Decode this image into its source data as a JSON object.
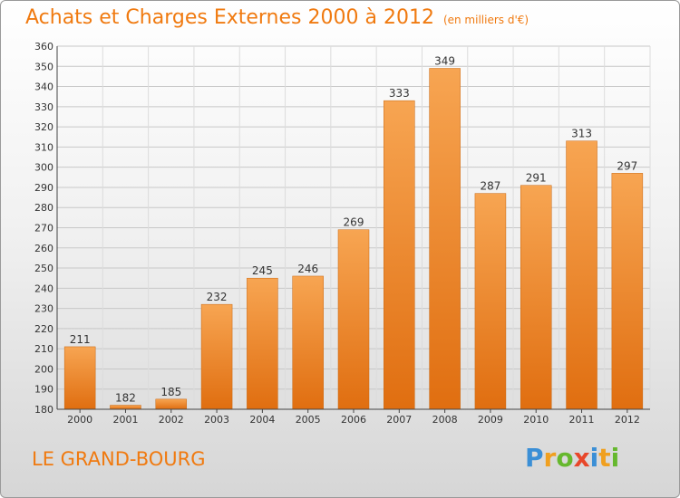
{
  "header": {
    "title": "Achats et Charges Externes 2000 à 2012",
    "unit": "(en milliers d'€)"
  },
  "footer": {
    "place": "LE GRAND-BOURG",
    "logo": [
      {
        "ch": "P",
        "color": "#3b8fd6"
      },
      {
        "ch": "r",
        "color": "#f0a020"
      },
      {
        "ch": "o",
        "color": "#66b82e"
      },
      {
        "ch": "x",
        "color": "#e8472a"
      },
      {
        "ch": "i",
        "color": "#3b8fd6"
      },
      {
        "ch": "t",
        "color": "#f0a020"
      },
      {
        "ch": "i",
        "color": "#66b82e"
      }
    ]
  },
  "chart_data": {
    "type": "bar",
    "categories": [
      "2000",
      "2001",
      "2002",
      "2003",
      "2004",
      "2005",
      "2006",
      "2007",
      "2008",
      "2009",
      "2010",
      "2011",
      "2012"
    ],
    "values": [
      211,
      182,
      185,
      232,
      245,
      246,
      269,
      333,
      349,
      287,
      291,
      313,
      297
    ],
    "ylim": [
      180,
      360
    ],
    "yticks": [
      180,
      190,
      200,
      210,
      220,
      230,
      240,
      250,
      260,
      270,
      280,
      290,
      300,
      310,
      320,
      330,
      340,
      350,
      360
    ],
    "grid": true,
    "bar_color_top": "#f7a552",
    "bar_color_bottom": "#e06e10"
  }
}
